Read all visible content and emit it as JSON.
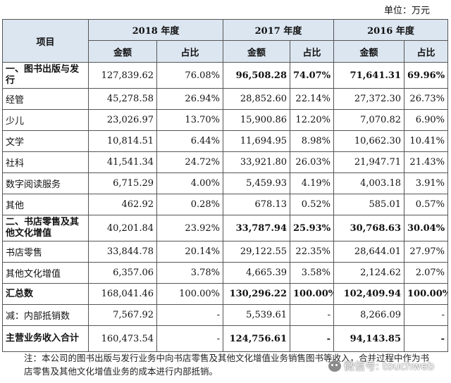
{
  "unit_label": "单位：万元",
  "header": {
    "item": "项目",
    "years": [
      "2018 年度",
      "2017 年度",
      "2016 年度"
    ],
    "amount": "金额",
    "ratio": "占比"
  },
  "rows": [
    {
      "label": "一、图书出版与发行",
      "v": [
        "127,839.62",
        "76.08%",
        "96,508.28",
        "74.07%",
        "71,641.31",
        "69.96%"
      ]
    },
    {
      "label": "经管",
      "v": [
        "45,278.58",
        "26.94%",
        "28,852.60",
        "22.14%",
        "27,372.30",
        "26.73%"
      ]
    },
    {
      "label": "少儿",
      "v": [
        "23,026.97",
        "13.70%",
        "15,900.86",
        "12.20%",
        "7,070.82",
        "6.90%"
      ]
    },
    {
      "label": "文学",
      "v": [
        "10,814.51",
        "6.44%",
        "11,694.95",
        "8.98%",
        "10,662.30",
        "10.41%"
      ]
    },
    {
      "label": "社科",
      "v": [
        "41,541.34",
        "24.72%",
        "33,921.80",
        "26.03%",
        "21,947.71",
        "21.43%"
      ]
    },
    {
      "label": "数字阅读服务",
      "v": [
        "6,715.29",
        "4.00%",
        "5,459.93",
        "4.19%",
        "4,003.18",
        "3.91%"
      ]
    },
    {
      "label": "其他",
      "v": [
        "462.92",
        "0.28%",
        "678.13",
        "0.52%",
        "585.01",
        "0.57%"
      ]
    },
    {
      "label": "二、书店零售及其他文化增值",
      "v": [
        "40,201.84",
        "23.92%",
        "33,787.94",
        "25.93%",
        "30,768.63",
        "30.04%"
      ]
    },
    {
      "label": "书店零售",
      "v": [
        "33,844.78",
        "20.14%",
        "29,122.55",
        "22.35%",
        "28,644.01",
        "27.97%"
      ]
    },
    {
      "label": "其他文化增值",
      "v": [
        "6,357.06",
        "3.78%",
        "4,665.39",
        "3.58%",
        "2,124.62",
        "2.07%"
      ]
    },
    {
      "label": "汇总数",
      "v": [
        "168,041.46",
        "100.00%",
        "130,296.22",
        "100.00%",
        "102,409.94",
        "100.00%"
      ]
    },
    {
      "label": "减：内部抵销数",
      "v": [
        "7,567.92",
        "-",
        "5,539.61",
        "-",
        "8,266.09",
        "-"
      ]
    },
    {
      "label": "主营业务收入合计",
      "v": [
        "160,473.54",
        "-",
        "124,756.61",
        "-",
        "94,143.85",
        "-"
      ]
    }
  ],
  "note": "注：本公司的图书出版与发行业务中向书店零售及其他文化增值业务销售图书等收入，合并过程中作为书店零售及其他文化增值业务的成本进行内部抵销。",
  "watermark": "微信号: touchweb"
}
